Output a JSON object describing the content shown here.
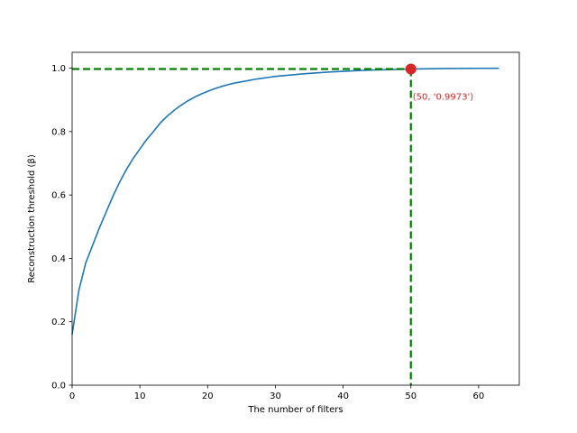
{
  "chart_data": {
    "type": "line",
    "title": "",
    "xlabel": "The number of filters",
    "ylabel": "Reconstruction threshold (β)",
    "xlim": [
      0,
      66
    ],
    "ylim": [
      0,
      1.05
    ],
    "x_ticks": [
      0,
      10,
      20,
      30,
      40,
      50,
      60
    ],
    "y_ticks": [
      0.0,
      0.2,
      0.4,
      0.6,
      0.8,
      1.0
    ],
    "x_tick_labels": [
      "0",
      "10",
      "20",
      "30",
      "40",
      "50",
      "60"
    ],
    "y_tick_labels": [
      "0.0",
      "0.2",
      "0.4",
      "0.6",
      "0.8",
      "1.0"
    ],
    "grid": false,
    "series": [
      {
        "color": "#1f77b4",
        "x": [
          0,
          1,
          2,
          3,
          4,
          5,
          6,
          7,
          8,
          9,
          10,
          11,
          12,
          13,
          14,
          15,
          16,
          17,
          18,
          19,
          20,
          21,
          22,
          23,
          24,
          25,
          26,
          27,
          28,
          29,
          30,
          32,
          34,
          36,
          38,
          40,
          42,
          44,
          46,
          48,
          50,
          52,
          54,
          56,
          58,
          60,
          63
        ],
        "y": [
          0.16,
          0.3,
          0.385,
          0.44,
          0.495,
          0.545,
          0.595,
          0.64,
          0.68,
          0.715,
          0.745,
          0.775,
          0.8,
          0.827,
          0.848,
          0.866,
          0.882,
          0.896,
          0.908,
          0.918,
          0.927,
          0.935,
          0.942,
          0.948,
          0.953,
          0.957,
          0.961,
          0.965,
          0.968,
          0.971,
          0.974,
          0.978,
          0.982,
          0.985,
          0.988,
          0.99,
          0.992,
          0.994,
          0.995,
          0.996,
          0.9973,
          0.998,
          0.9985,
          0.999,
          0.9993,
          0.9995,
          0.9997
        ]
      }
    ],
    "highlight": {
      "x": 50,
      "y": 0.9973,
      "marker_color": "#d62728",
      "guide_color": "#008000",
      "label": "(50, '0.9973')",
      "label_color": "#d62728"
    }
  }
}
